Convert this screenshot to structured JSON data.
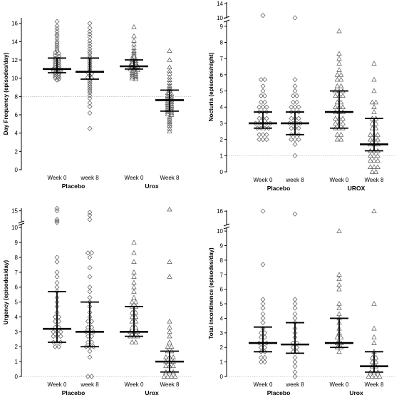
{
  "chart_data": [
    {
      "type": "scatter",
      "ylabel": "Day Frequency (episodes/day)",
      "y_ticks": [
        0,
        2,
        4,
        6,
        8,
        10,
        12,
        14,
        16
      ],
      "ylim": [
        0,
        16.6
      ],
      "reference_line": 8,
      "groups": [
        "Placebo",
        "Urox"
      ],
      "categories": [
        "Week 0",
        "week 8",
        "Week 0",
        "Week 8"
      ],
      "series": [
        {
          "marker": "diamond",
          "median": 11.0,
          "iqr": [
            10.6,
            12.2
          ],
          "values": [
            16.2,
            15.7,
            15.4,
            15.1,
            14.8,
            14.6,
            14.3,
            14.0,
            13.8,
            13.6,
            13.4,
            13.2,
            13.0,
            12.8,
            12.7,
            12.5,
            12.4,
            12.2,
            12.1,
            12.0,
            11.9,
            11.8,
            11.7,
            11.6,
            11.5,
            11.4,
            11.3,
            11.2,
            11.1,
            11.0,
            11.0,
            10.9,
            10.8,
            10.7,
            10.7,
            10.6,
            10.5,
            10.4,
            10.3,
            10.2,
            10.1,
            10.0,
            9.9,
            9.8
          ]
        },
        {
          "marker": "diamond",
          "median": 10.7,
          "iqr": [
            9.9,
            12.2
          ],
          "values": [
            16.0,
            15.5,
            15.1,
            14.8,
            14.5,
            14.1,
            13.8,
            13.5,
            13.2,
            12.9,
            12.7,
            12.4,
            12.2,
            12.0,
            11.8,
            11.6,
            11.4,
            11.2,
            11.0,
            10.8,
            10.6,
            10.5,
            10.3,
            10.1,
            10.0,
            9.8,
            9.6,
            9.4,
            9.2,
            9.0,
            8.8,
            8.6,
            8.4,
            8.1,
            7.8,
            7.3,
            6.9,
            6.2,
            4.5
          ]
        },
        {
          "marker": "triangle",
          "median": 11.3,
          "iqr": [
            11.0,
            12.0
          ],
          "values": [
            15.6,
            14.6,
            14.1,
            13.7,
            13.3,
            13.0,
            12.8,
            12.6,
            12.4,
            12.2,
            12.1,
            12.0,
            11.9,
            11.8,
            11.7,
            11.6,
            11.5,
            11.4,
            11.3,
            11.3,
            11.2,
            11.1,
            11.0,
            11.0,
            10.9,
            10.8,
            10.7,
            10.6,
            10.5,
            10.4,
            10.3,
            10.2,
            10.1,
            10.0,
            9.9
          ]
        },
        {
          "marker": "triangle",
          "median": 7.6,
          "iqr": [
            6.4,
            8.7
          ],
          "values": [
            13.0,
            12.0,
            11.2,
            10.8,
            10.5,
            10.1,
            9.8,
            9.5,
            9.2,
            9.0,
            8.8,
            8.6,
            8.4,
            8.3,
            8.1,
            8.0,
            7.9,
            7.8,
            7.7,
            7.6,
            7.5,
            7.4,
            7.3,
            7.2,
            7.1,
            7.0,
            6.9,
            6.8,
            6.7,
            6.6,
            6.5,
            6.4,
            6.3,
            6.2,
            6.1,
            6.0,
            5.8,
            5.6,
            5.4,
            5.2,
            5.0,
            4.8,
            4.5,
            4.2
          ]
        }
      ]
    },
    {
      "type": "scatter",
      "ylabel": "Nocturia (episodes/night)",
      "y_ticks": [
        0,
        1,
        2,
        3,
        4,
        5,
        6,
        7,
        8,
        9,
        10,
        14
      ],
      "ylim": [
        0,
        14.3
      ],
      "axis_break": true,
      "reference_line": 1,
      "groups": [
        "Placebo",
        "UROX"
      ],
      "categories": [
        "Week 0",
        "week 8",
        "Week 0",
        "Week 8"
      ],
      "series": [
        {
          "marker": "diamond",
          "median": 3.0,
          "iqr": [
            2.7,
            3.7
          ],
          "values": [
            11.5,
            5.7,
            5.7,
            5.3,
            5.0,
            4.7,
            4.7,
            4.3,
            4.3,
            4.0,
            4.0,
            4.0,
            3.7,
            3.7,
            3.7,
            3.3,
            3.3,
            3.3,
            3.0,
            3.0,
            3.0,
            3.0,
            3.0,
            2.7,
            2.7,
            2.7,
            2.7,
            2.3,
            2.3,
            2.3,
            2.0,
            2.0,
            2.0
          ]
        },
        {
          "marker": "diamond",
          "median": 3.0,
          "iqr": [
            2.3,
            3.7
          ],
          "values": [
            10.0,
            5.7,
            5.3,
            5.0,
            4.7,
            4.7,
            4.3,
            4.3,
            4.0,
            4.0,
            4.0,
            3.7,
            3.7,
            3.7,
            3.3,
            3.3,
            3.3,
            3.0,
            3.0,
            3.0,
            3.0,
            2.7,
            2.7,
            2.7,
            2.3,
            2.3,
            2.3,
            2.0,
            2.0,
            2.0,
            1.7,
            1.0
          ]
        },
        {
          "marker": "triangle",
          "median": 3.7,
          "iqr": [
            2.7,
            5.0
          ],
          "values": [
            8.7,
            7.3,
            7.0,
            6.7,
            6.3,
            6.0,
            6.0,
            5.7,
            5.7,
            5.3,
            5.3,
            5.0,
            5.0,
            5.0,
            4.7,
            4.7,
            4.7,
            4.3,
            4.3,
            4.0,
            4.0,
            4.0,
            3.7,
            3.7,
            3.7,
            3.3,
            3.3,
            3.3,
            3.0,
            3.0,
            3.0,
            2.7,
            2.7,
            2.7,
            2.3,
            2.3,
            2.0,
            2.0
          ]
        },
        {
          "marker": "triangle",
          "median": 1.7,
          "iqr": [
            1.3,
            3.3
          ],
          "values": [
            6.7,
            5.7,
            5.0,
            4.3,
            4.3,
            4.0,
            3.7,
            3.3,
            3.3,
            3.0,
            3.0,
            2.7,
            2.7,
            2.3,
            2.3,
            2.3,
            2.0,
            2.0,
            2.0,
            1.7,
            1.7,
            1.7,
            1.3,
            1.3,
            1.3,
            1.0,
            1.0,
            1.0,
            0.7,
            0.7,
            0.7,
            0.3,
            0.3,
            0.3,
            0.0,
            0.0
          ]
        }
      ]
    },
    {
      "type": "scatter",
      "ylabel": "Urgency (episodes/day)",
      "y_ticks": [
        0,
        1,
        2,
        3,
        4,
        5,
        6,
        7,
        8,
        9,
        10,
        15
      ],
      "ylim": [
        0,
        15.9
      ],
      "axis_break": true,
      "reference_line": 0,
      "groups": [
        "Placebo",
        "Urox"
      ],
      "categories": [
        "Week 0",
        "week 8",
        "Week 0",
        "Week 8"
      ],
      "series": [
        {
          "marker": "diamond",
          "median": 3.2,
          "iqr": [
            2.3,
            5.7
          ],
          "values": [
            15.8,
            15.0,
            12.0,
            11.5,
            10.5,
            8.0,
            7.7,
            7.0,
            6.7,
            6.3,
            6.0,
            5.7,
            5.3,
            5.0,
            4.7,
            4.3,
            4.0,
            4.0,
            3.7,
            3.7,
            3.3,
            3.3,
            3.0,
            3.0,
            3.0,
            2.7,
            2.7,
            2.7,
            2.3,
            2.3,
            2.3,
            2.0,
            2.0
          ]
        },
        {
          "marker": "diamond",
          "median": 3.0,
          "iqr": [
            2.0,
            5.0
          ],
          "values": [
            14.5,
            13.5,
            12.0,
            8.3,
            8.3,
            8.0,
            7.3,
            6.7,
            6.0,
            5.7,
            5.3,
            5.0,
            4.7,
            4.3,
            4.0,
            3.7,
            3.7,
            3.3,
            3.3,
            3.0,
            3.0,
            3.0,
            2.7,
            2.7,
            2.3,
            2.3,
            2.0,
            2.0,
            2.0,
            1.7,
            1.3,
            0.0,
            0.0
          ]
        },
        {
          "marker": "triangle",
          "median": 3.0,
          "iqr": [
            2.7,
            4.7
          ],
          "values": [
            9.0,
            8.3,
            7.7,
            7.0,
            6.7,
            6.3,
            6.0,
            5.7,
            5.3,
            5.0,
            5.0,
            4.7,
            4.7,
            4.3,
            4.3,
            4.0,
            4.0,
            3.7,
            3.7,
            3.3,
            3.3,
            3.0,
            3.0,
            3.0,
            2.7,
            2.7,
            2.7,
            2.3,
            2.3
          ]
        },
        {
          "marker": "triangle",
          "median": 1.0,
          "iqr": [
            0.3,
            1.7
          ],
          "values": [
            15.5,
            7.7,
            6.7,
            3.7,
            3.3,
            3.0,
            2.7,
            2.3,
            2.0,
            2.0,
            1.7,
            1.7,
            1.3,
            1.3,
            1.3,
            1.0,
            1.0,
            1.0,
            0.7,
            0.7,
            0.7,
            0.3,
            0.3,
            0.3,
            0.0,
            0.0,
            0.0,
            0.0
          ]
        }
      ]
    },
    {
      "type": "scatter",
      "ylabel": "Total incontinence (episodes/day)",
      "y_ticks": [
        0,
        1,
        2,
        3,
        4,
        5,
        6,
        7,
        8,
        9,
        10,
        16
      ],
      "ylim": [
        0,
        16.3
      ],
      "axis_break": true,
      "reference_line": 0,
      "groups": [
        "Placebo",
        "Urox"
      ],
      "categories": [
        "Week 0",
        "week 8",
        "Week 0",
        "Week 8"
      ],
      "series": [
        {
          "marker": "diamond",
          "median": 2.3,
          "iqr": [
            1.7,
            3.4
          ],
          "values": [
            16.0,
            7.7,
            5.3,
            5.0,
            4.7,
            4.3,
            4.0,
            3.7,
            3.3,
            3.0,
            3.0,
            2.7,
            2.7,
            2.3,
            2.3,
            2.3,
            2.0,
            2.0,
            1.7,
            1.7,
            1.3,
            1.3,
            1.0,
            1.0
          ]
        },
        {
          "marker": "diamond",
          "median": 2.2,
          "iqr": [
            1.6,
            3.7
          ],
          "values": [
            15.0,
            5.3,
            5.0,
            4.7,
            4.3,
            4.0,
            3.7,
            3.3,
            3.0,
            2.7,
            2.3,
            2.3,
            2.0,
            2.0,
            1.7,
            1.7,
            1.3,
            1.0,
            0.7,
            0.3,
            0.0
          ]
        },
        {
          "marker": "triangle",
          "median": 2.3,
          "iqr": [
            2.0,
            4.0
          ],
          "values": [
            10.0,
            7.0,
            6.7,
            6.3,
            6.0,
            5.0,
            4.7,
            4.3,
            4.0,
            3.7,
            3.3,
            3.0,
            2.7,
            2.7,
            2.3,
            2.3,
            2.0,
            2.0,
            1.7
          ]
        },
        {
          "marker": "triangle",
          "median": 0.7,
          "iqr": [
            0.3,
            1.7
          ],
          "values": [
            16.0,
            5.0,
            3.3,
            2.7,
            2.3,
            1.7,
            1.3,
            1.3,
            1.0,
            1.0,
            0.7,
            0.7,
            0.3,
            0.3,
            0.3,
            0.0,
            0.0,
            0.0,
            0.0
          ]
        }
      ]
    }
  ]
}
